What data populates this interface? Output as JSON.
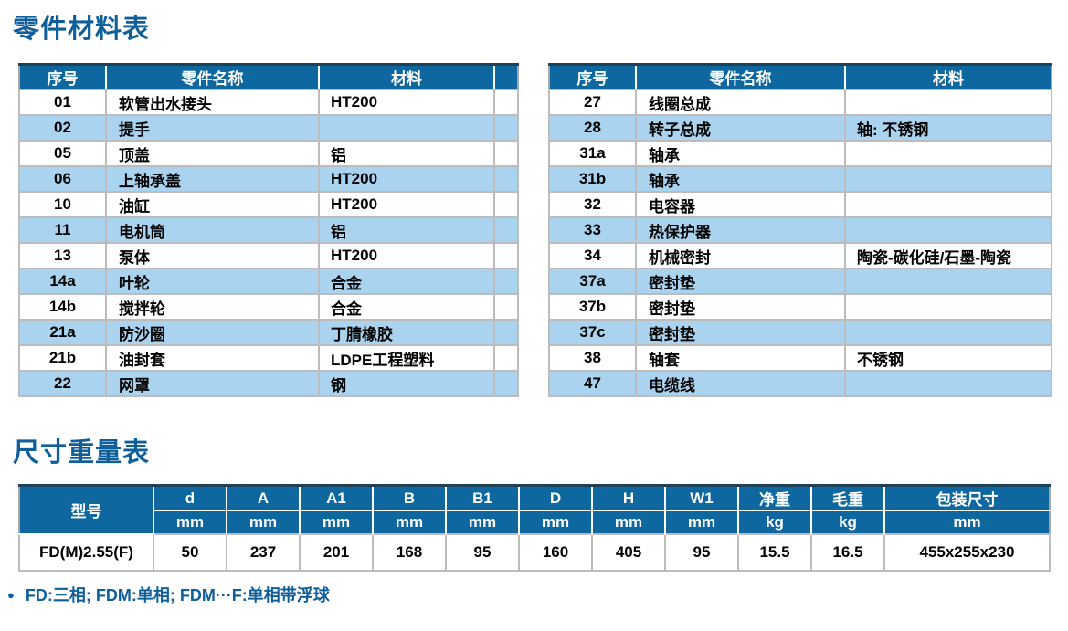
{
  "colors": {
    "header_blue": "#0e679f",
    "alt_row_blue": "#a9d3ee",
    "grid_border_gray": "#bcbcbc",
    "outer_border_gray": "#a6a6a6",
    "header_top_navy": "#1d4257",
    "title_blue": "#0f5f9a"
  },
  "parts_section": {
    "title": "零件材料表",
    "columns": {
      "no": "序号",
      "name": "零件名称",
      "material": "材料"
    },
    "left_rows": [
      {
        "no": "01",
        "name": "软管出水接头",
        "material": "HT200"
      },
      {
        "no": "02",
        "name": "提手",
        "material": ""
      },
      {
        "no": "05",
        "name": "顶盖",
        "material": "铝"
      },
      {
        "no": "06",
        "name": "上轴承盖",
        "material": "HT200"
      },
      {
        "no": "10",
        "name": "油缸",
        "material": "HT200"
      },
      {
        "no": "11",
        "name": "电机筒",
        "material": "铝"
      },
      {
        "no": "13",
        "name": "泵体",
        "material": "HT200"
      },
      {
        "no": "14a",
        "name": "叶轮",
        "material": "合金"
      },
      {
        "no": "14b",
        "name": "搅拌轮",
        "material": "合金"
      },
      {
        "no": "21a",
        "name": "防沙圈",
        "material": "丁腈橡胶"
      },
      {
        "no": "21b",
        "name": "油封套",
        "material": "LDPE工程塑料"
      },
      {
        "no": "22",
        "name": "网罩",
        "material": "钢"
      }
    ],
    "right_rows": [
      {
        "no": "27",
        "name": "线圈总成",
        "material": ""
      },
      {
        "no": "28",
        "name": "转子总成",
        "material": "轴: 不锈钢"
      },
      {
        "no": "31a",
        "name": "轴承",
        "material": ""
      },
      {
        "no": "31b",
        "name": "轴承",
        "material": ""
      },
      {
        "no": "32",
        "name": "电容器",
        "material": ""
      },
      {
        "no": "33",
        "name": "热保护器",
        "material": ""
      },
      {
        "no": "34",
        "name": "机械密封",
        "material": "陶瓷-碳化硅/石墨-陶瓷"
      },
      {
        "no": "37a",
        "name": "密封垫",
        "material": ""
      },
      {
        "no": "37b",
        "name": "密封垫",
        "material": ""
      },
      {
        "no": "37c",
        "name": "密封垫",
        "material": ""
      },
      {
        "no": "38",
        "name": "轴套",
        "material": "不锈钢"
      },
      {
        "no": "47",
        "name": "电缆线",
        "material": ""
      }
    ]
  },
  "dims_section": {
    "title": "尺寸重量表",
    "model_header": "型号",
    "columns": [
      {
        "label": "d",
        "unit": "mm"
      },
      {
        "label": "A",
        "unit": "mm"
      },
      {
        "label": "A1",
        "unit": "mm"
      },
      {
        "label": "B",
        "unit": "mm"
      },
      {
        "label": "B1",
        "unit": "mm"
      },
      {
        "label": "D",
        "unit": "mm"
      },
      {
        "label": "H",
        "unit": "mm"
      },
      {
        "label": "W1",
        "unit": "mm"
      },
      {
        "label": "净重",
        "unit": "kg"
      },
      {
        "label": "毛重",
        "unit": "kg"
      },
      {
        "label": "包装尺寸",
        "unit": "mm"
      }
    ],
    "row": {
      "model": "FD(M)2.55(F)",
      "values": [
        "50",
        "237",
        "201",
        "168",
        "95",
        "160",
        "405",
        "95",
        "15.5",
        "16.5",
        "455x255x230"
      ]
    },
    "bullet": "●",
    "note": "FD:三相; FDM:单相; FDM···F:单相带浮球"
  }
}
